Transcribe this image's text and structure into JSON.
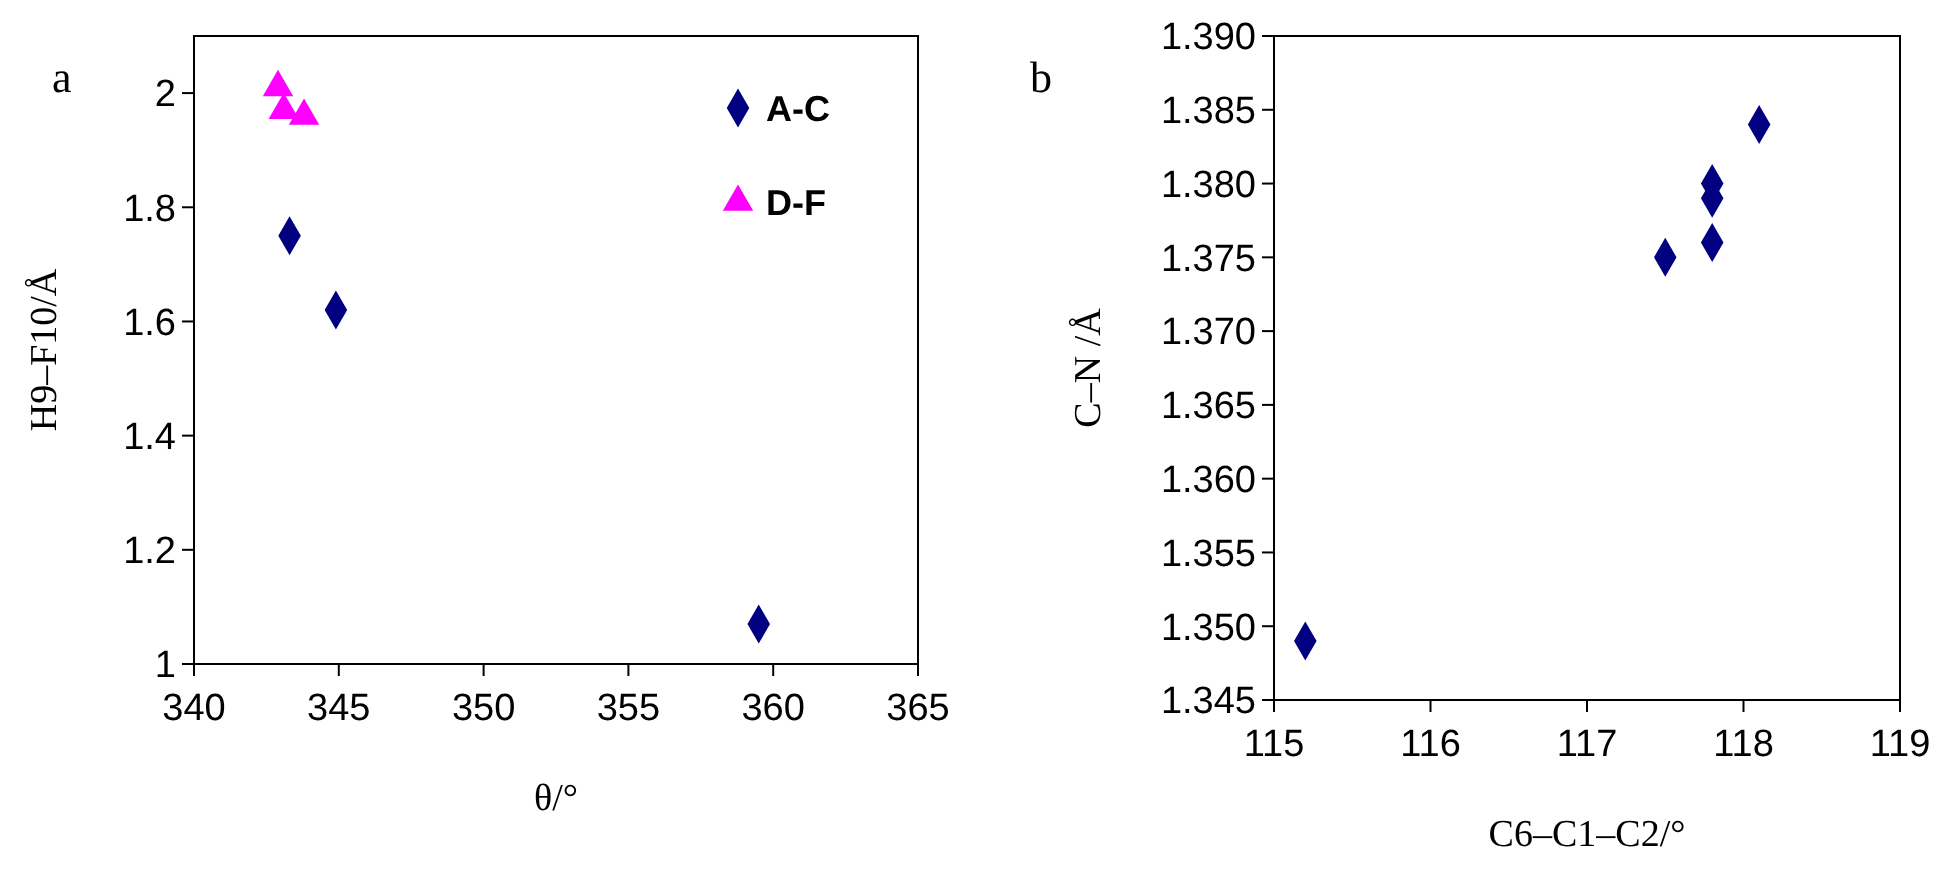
{
  "chart_data": [
    {
      "type": "scatter",
      "xlabel": "θ/°",
      "ylabel": "H9–F10/Å",
      "annotations": [
        "a"
      ],
      "xlim": [
        340,
        365
      ],
      "xticks": [
        340,
        345,
        350,
        355,
        360,
        365
      ],
      "ylim": [
        1,
        2.1
      ],
      "yticks": [
        1,
        1.2,
        1.4,
        1.6,
        1.8,
        2
      ],
      "legend": "top right",
      "grid": false,
      "series": [
        {
          "name": "A-C",
          "color": "#000080",
          "marker": "diamond",
          "x": [
            343.3,
            344.9,
            359.5
          ],
          "values": [
            1.75,
            1.62,
            1.07
          ]
        },
        {
          "name": "D-F",
          "color": "#ff00ff",
          "marker": "triangle",
          "x": [
            342.9,
            343.1,
            343.8
          ],
          "values": [
            2.01,
            1.97,
            1.96
          ]
        }
      ]
    },
    {
      "type": "scatter",
      "xlabel": "C6–C1–C2/°",
      "ylabel": "C–N /Å",
      "annotations": [
        "b"
      ],
      "xlim": [
        115,
        119
      ],
      "xticks": [
        115,
        116,
        117,
        118,
        119
      ],
      "ylim": [
        1.345,
        1.39
      ],
      "yticks": [
        {
          "value": 1.345,
          "label": "1.345"
        },
        {
          "value": 1.35,
          "label": "1.350"
        },
        {
          "value": 1.355,
          "label": "1.355"
        },
        {
          "value": 1.36,
          "label": "1.360"
        },
        {
          "value": 1.365,
          "label": "1.365"
        },
        {
          "value": 1.37,
          "label": "1.370"
        },
        {
          "value": 1.375,
          "label": "1.375"
        },
        {
          "value": 1.38,
          "label": "1.380"
        },
        {
          "value": 1.385,
          "label": "1.385"
        },
        {
          "value": 1.39,
          "label": "1.390"
        }
      ],
      "legend": false,
      "grid": false,
      "series": [
        {
          "color": "#000080",
          "marker": "diamond",
          "x": [
            115.2,
            117.5,
            117.8,
            117.8,
            117.8,
            118.1
          ],
          "values": [
            1.349,
            1.375,
            1.376,
            1.379,
            1.38,
            1.384
          ]
        }
      ]
    }
  ]
}
